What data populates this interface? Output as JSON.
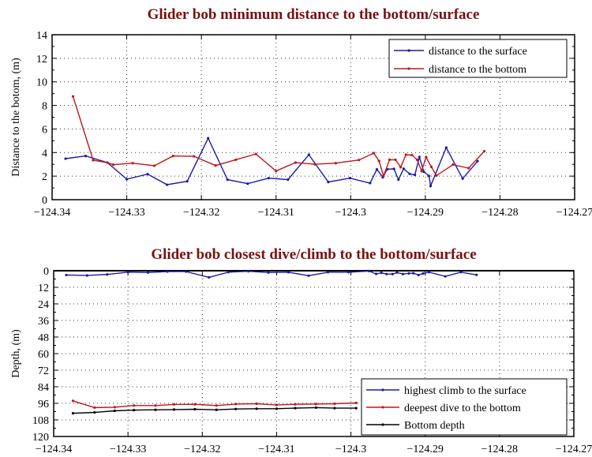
{
  "chart_data": [
    {
      "type": "line",
      "title": "Glider bob minimum distance to the bottom/surface",
      "xlabel": "",
      "ylabel": "Distance to the botom, (m)",
      "xlim": [
        -124.34,
        -124.27
      ],
      "ylim": [
        0,
        14
      ],
      "y_reversed": false,
      "xticks": [
        "−124.34",
        "−124.33",
        "−124.32",
        "−124.31",
        "−124.3",
        "−124.29",
        "−124.28",
        "−124.27"
      ],
      "yticks": [
        "0",
        "2",
        "4",
        "6",
        "8",
        "10",
        "12",
        "14"
      ],
      "grid": true,
      "legend_position": "top-right",
      "series": [
        {
          "name": "distance to the surface",
          "color": "#1a1aa8",
          "x": [
            -124.3382,
            -124.3355,
            -124.3326,
            -124.33,
            -124.3272,
            -124.3246,
            -124.3219,
            -124.3191,
            -124.3165,
            -124.3138,
            -124.311,
            -124.3084,
            -124.3056,
            -124.303,
            -124.3001,
            -124.2974,
            -124.2965,
            -124.2957,
            -124.2951,
            -124.2942,
            -124.2936,
            -124.2929,
            -124.2921,
            -124.2914,
            -124.2908,
            -124.2902,
            -124.2895,
            -124.2893,
            -124.2872,
            -124.285,
            -124.283
          ],
          "y": [
            3.48,
            3.71,
            3.15,
            1.74,
            2.17,
            1.27,
            1.56,
            5.22,
            1.7,
            1.36,
            1.83,
            1.7,
            3.82,
            1.5,
            1.83,
            1.41,
            2.57,
            1.9,
            2.59,
            2.61,
            1.7,
            2.63,
            2.19,
            2.1,
            3.62,
            2.37,
            2.01,
            1.16,
            4.42,
            1.79,
            3.27
          ]
        },
        {
          "name": "distance to the bottom",
          "color": "#c0161c",
          "x": [
            -124.3372,
            -124.3345,
            -124.3326,
            -124.3318,
            -124.3292,
            -124.3263,
            -124.3238,
            -124.321,
            -124.3181,
            -124.3154,
            -124.3127,
            -124.31,
            -124.3074,
            -124.3048,
            -124.302,
            -124.2989,
            -124.2969,
            -124.2962,
            -124.2956,
            -124.2948,
            -124.294,
            -124.2933,
            -124.2926,
            -124.2918,
            -124.2911,
            -124.2905,
            -124.2899,
            -124.2892,
            -124.2885,
            -124.2863,
            -124.2842,
            -124.2821
          ],
          "y": [
            8.77,
            3.35,
            3.15,
            2.97,
            3.1,
            2.88,
            3.71,
            3.68,
            2.9,
            3.39,
            3.88,
            2.43,
            3.15,
            3.01,
            3.1,
            3.37,
            3.95,
            3.28,
            2.01,
            3.39,
            3.39,
            2.75,
            3.82,
            3.79,
            3.39,
            2.43,
            3.62,
            2.79,
            2.05,
            2.97,
            2.68,
            4.11
          ]
        }
      ]
    },
    {
      "type": "line",
      "title": "Glider bob closest dive/climb to the bottom/surface",
      "xlabel": "",
      "ylabel": "Depth, (m)",
      "xlim": [
        -124.34,
        -124.27
      ],
      "ylim": [
        0,
        120
      ],
      "y_reversed": true,
      "xticks": [
        "−124.34",
        "−124.33",
        "−124.32",
        "−124.31",
        "−124.3",
        "−124.29",
        "−124.28",
        "−124.27"
      ],
      "yticks": [
        "0",
        "12",
        "24",
        "36",
        "48",
        "60",
        "72",
        "84",
        "96",
        "108",
        "120"
      ],
      "grid": true,
      "legend_position": "bottom-right",
      "series": [
        {
          "name": "highest climb to the surface",
          "color": "#1a1aa8",
          "x": [
            -124.3383,
            -124.3355,
            -124.3328,
            -124.33,
            -124.3273,
            -124.3247,
            -124.3222,
            -124.3191,
            -124.3165,
            -124.3138,
            -124.3111,
            -124.3084,
            -124.3057,
            -124.3031,
            -124.3003,
            -124.2976,
            -124.2966,
            -124.2959,
            -124.2952,
            -124.2944,
            -124.2938,
            -124.293,
            -124.2922,
            -124.2916,
            -124.2909,
            -124.2903,
            -124.2895,
            -124.2873,
            -124.2852,
            -124.2831
          ],
          "y": [
            3.1,
            3.4,
            2.7,
            1.0,
            1.3,
            0.6,
            0.6,
            4.8,
            1.0,
            0.4,
            1.3,
            1.1,
            3.6,
            1.1,
            1.1,
            0.2,
            2.3,
            1.5,
            2.4,
            2.4,
            1.3,
            2.4,
            1.9,
            1.8,
            3.1,
            2.0,
            1.0,
            4.1,
            1.0,
            3.0
          ]
        },
        {
          "name": "deepest dive to the bottom",
          "color": "#c0161c",
          "x": [
            -124.3374,
            -124.3345,
            -124.3318,
            -124.3292,
            -124.3263,
            -124.3238,
            -124.321,
            -124.3181,
            -124.3155,
            -124.3127,
            -124.31,
            -124.3075,
            -124.3047,
            -124.3022,
            -124.2993
          ],
          "y": [
            94.2,
            99.1,
            98.8,
            97.6,
            97.6,
            96.8,
            96.7,
            97.6,
            96.5,
            96.3,
            97.2,
            96.7,
            96.5,
            96.3,
            95.7
          ]
        },
        {
          "name": "Bottom depth",
          "color": "#000000",
          "x": [
            -124.3374,
            -124.3345,
            -124.3318,
            -124.3292,
            -124.3263,
            -124.3238,
            -124.321,
            -124.3181,
            -124.3155,
            -124.3127,
            -124.31,
            -124.3075,
            -124.3047,
            -124.3022,
            -124.2993
          ],
          "y": [
            103.2,
            102.6,
            101.4,
            100.9,
            100.7,
            100.5,
            100.3,
            100.7,
            100.1,
            99.9,
            99.9,
            99.5,
            99.1,
            99.5,
            99.5
          ]
        }
      ]
    }
  ]
}
